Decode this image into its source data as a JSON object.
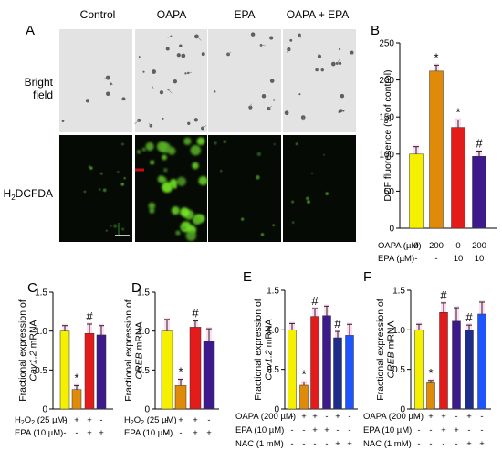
{
  "panel_a": {
    "letter": "A",
    "columns": [
      "Control",
      "OAPA",
      "EPA",
      "OAPA + EPA"
    ],
    "row_labels": {
      "bright_line1": "Bright",
      "bright_line2": "field",
      "fluor": "H2DCFDA"
    }
  },
  "colors": {
    "control": "#f5f000",
    "oapa": "#e08a0a",
    "epa": "#e41b1b",
    "combo": "#3c1a8c",
    "combo2": "#1c2d8c",
    "nac": "#1e55ff",
    "highlight": "#ff9ad8"
  },
  "chart_data": [
    {
      "panel": "B",
      "type": "bar",
      "ylabel": "DCF fluoresence (% of control)",
      "ylim": [
        0,
        250
      ],
      "yticks": [
        0,
        50,
        100,
        150,
        200,
        250
      ],
      "values": [
        100,
        212,
        136,
        97
      ],
      "errors": [
        10,
        8,
        10,
        7
      ],
      "marks": [
        "",
        "*",
        "*",
        "#"
      ],
      "colorkeys": [
        "control",
        "oapa",
        "epa",
        "combo"
      ],
      "conditions": [
        {
          "label": "OAPA (µM)",
          "values": [
            "0",
            "200",
            "0",
            "200"
          ]
        },
        {
          "label": "EPA (µM)",
          "values": [
            "-",
            "-",
            "10",
            "10"
          ]
        }
      ]
    },
    {
      "panel": "C",
      "type": "bar",
      "ylabel_main": "Fractional expression of",
      "ylabel_gene": "Cav1.2",
      "ylabel_tail": " mRNA",
      "ylim": [
        0,
        1.5
      ],
      "yticks": [
        0,
        0.5,
        1.0,
        1.5
      ],
      "values": [
        1.0,
        0.25,
        0.97,
        0.95
      ],
      "errors": [
        0.07,
        0.05,
        0.12,
        0.12
      ],
      "marks": [
        "",
        "*",
        "#",
        ""
      ],
      "colorkeys": [
        "control",
        "oapa",
        "epa",
        "combo"
      ],
      "conditions": [
        {
          "label": "H2O2 (25 µM)",
          "values": [
            "-",
            "+",
            "+",
            "-"
          ]
        },
        {
          "label": "EPA (10 µM)",
          "values": [
            "-",
            "-",
            "+",
            "+"
          ]
        }
      ]
    },
    {
      "panel": "D",
      "type": "bar",
      "ylabel_main": "Fractional expression of",
      "ylabel_gene": "CREB",
      "ylabel_tail": " mRNA",
      "ylim": [
        0,
        1.5
      ],
      "yticks": [
        0,
        0.5,
        1.0,
        1.5
      ],
      "values": [
        1.0,
        0.3,
        1.05,
        0.87
      ],
      "errors": [
        0.15,
        0.08,
        0.08,
        0.16
      ],
      "marks": [
        "",
        "*",
        "#",
        ""
      ],
      "colorkeys": [
        "control",
        "oapa",
        "epa",
        "combo"
      ],
      "conditions": [
        {
          "label": "H2O2 (25 µM)",
          "values": [
            "-",
            "+",
            "+",
            "-"
          ]
        },
        {
          "label": "EPA (10 µM)",
          "values": [
            "-",
            "-",
            "+",
            "+"
          ]
        }
      ]
    },
    {
      "panel": "E",
      "type": "bar",
      "ylabel_main": "Fractional expression of",
      "ylabel_gene": "Cav1.2",
      "ylabel_tail": " mRNA",
      "ylim": [
        0,
        1.5
      ],
      "yticks": [
        0,
        0.5,
        1.0,
        1.5
      ],
      "values": [
        1.0,
        0.3,
        1.17,
        1.18,
        0.9,
        0.93
      ],
      "errors": [
        0.08,
        0.04,
        0.1,
        0.12,
        0.08,
        0.14
      ],
      "marks": [
        "",
        "*",
        "#",
        "",
        "#",
        ""
      ],
      "colorkeys": [
        "control",
        "oapa",
        "epa",
        "combo",
        "combo2",
        "nac"
      ],
      "conditions": [
        {
          "label": "OAPA (200 µM)",
          "values": [
            "-",
            "+",
            "+",
            "-",
            "+",
            "-"
          ]
        },
        {
          "label": "EPA (10 µM)",
          "values": [
            "-",
            "-",
            "+",
            "+",
            "-",
            "-"
          ]
        },
        {
          "label": "NAC (1 mM)",
          "values": [
            "-",
            "-",
            "-",
            "-",
            "+",
            "+"
          ]
        }
      ]
    },
    {
      "panel": "F",
      "type": "bar",
      "ylabel_main": "Fractional expression of",
      "ylabel_gene": "CREB",
      "ylabel_tail": " mRNA",
      "ylim": [
        0,
        1.5
      ],
      "yticks": [
        0,
        0.5,
        1.0,
        1.5
      ],
      "values": [
        1.0,
        0.33,
        1.22,
        1.11,
        1.0,
        1.2
      ],
      "errors": [
        0.07,
        0.03,
        0.12,
        0.17,
        0.06,
        0.15
      ],
      "marks": [
        "",
        "*",
        "#",
        "",
        "#",
        ""
      ],
      "colorkeys": [
        "control",
        "oapa",
        "epa",
        "combo",
        "combo2",
        "nac"
      ],
      "conditions": [
        {
          "label": "OAPA (200 µM)",
          "values": [
            "-",
            "+",
            "+",
            "-",
            "+",
            "-"
          ]
        },
        {
          "label": "EPA (10 µM)",
          "values": [
            "-",
            "-",
            "+",
            "+",
            "-",
            "-"
          ]
        },
        {
          "label": "NAC (1 mM)",
          "values": [
            "-",
            "-",
            "-",
            "-",
            "+",
            "+"
          ]
        }
      ]
    }
  ]
}
